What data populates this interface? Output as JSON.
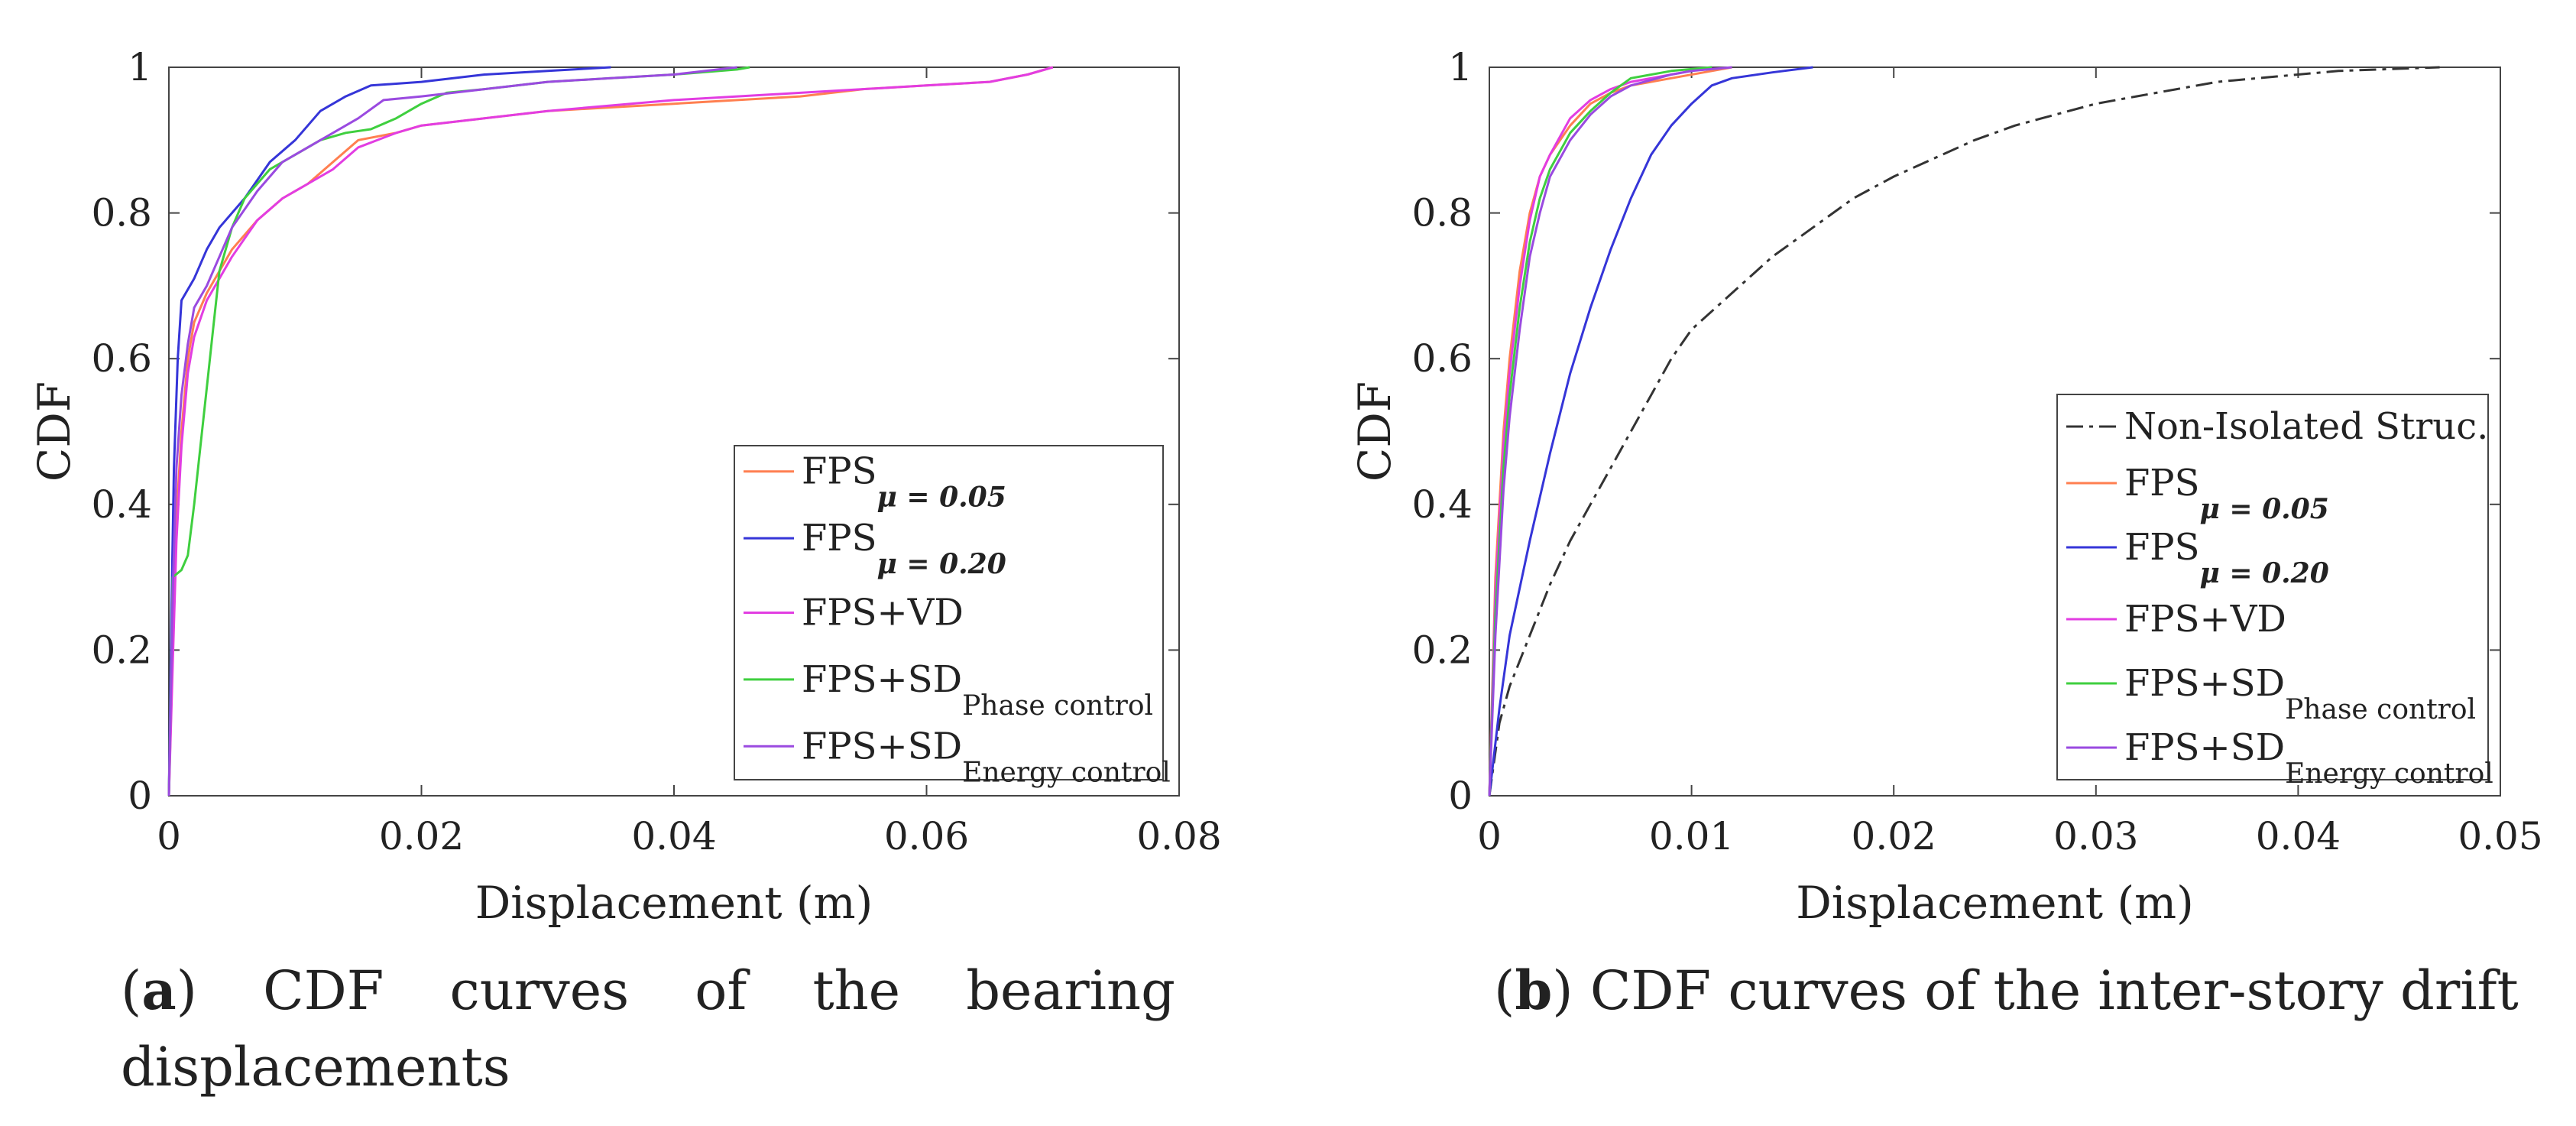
{
  "chart_data": [
    {
      "id": "a",
      "type": "line",
      "xlabel": "Displacement (m)",
      "ylabel": "CDF",
      "xlim": [
        0,
        0.08
      ],
      "ylim": [
        0,
        1
      ],
      "xticks": [
        0,
        0.02,
        0.04,
        0.06,
        0.08
      ],
      "xtick_labels": [
        "0",
        "0.02",
        "0.04",
        "0.06",
        "0.08"
      ],
      "yticks": [
        0,
        0.2,
        0.4,
        0.6,
        0.8,
        1
      ],
      "ytick_labels": [
        "0",
        "0.2",
        "0.4",
        "0.6",
        "0.8",
        "1"
      ],
      "legend_position": "bottom-right",
      "series": [
        {
          "name": "FPS",
          "sub": "μ = 0.05",
          "color": "#ff7f50",
          "dash": "",
          "points": [
            [
              0,
              0
            ],
            [
              0.0003,
              0.2
            ],
            [
              0.0006,
              0.38
            ],
            [
              0.001,
              0.5
            ],
            [
              0.0015,
              0.6
            ],
            [
              0.002,
              0.65
            ],
            [
              0.003,
              0.69
            ],
            [
              0.004,
              0.72
            ],
            [
              0.005,
              0.75
            ],
            [
              0.007,
              0.79
            ],
            [
              0.009,
              0.82
            ],
            [
              0.011,
              0.84
            ],
            [
              0.013,
              0.87
            ],
            [
              0.015,
              0.9
            ],
            [
              0.018,
              0.91
            ],
            [
              0.02,
              0.92
            ],
            [
              0.025,
              0.93
            ],
            [
              0.03,
              0.94
            ],
            [
              0.04,
              0.95
            ],
            [
              0.05,
              0.96
            ],
            [
              0.055,
              0.97
            ],
            [
              0.06,
              0.975
            ],
            [
              0.065,
              0.98
            ],
            [
              0.068,
              0.99
            ],
            [
              0.07,
              1
            ]
          ]
        },
        {
          "name": "FPS",
          "sub": "μ = 0.20",
          "color": "#3535d8",
          "dash": "",
          "points": [
            [
              0,
              0
            ],
            [
              0.0002,
              0.25
            ],
            [
              0.0004,
              0.45
            ],
            [
              0.0007,
              0.6
            ],
            [
              0.001,
              0.68
            ],
            [
              0.002,
              0.71
            ],
            [
              0.003,
              0.75
            ],
            [
              0.004,
              0.78
            ],
            [
              0.006,
              0.82
            ],
            [
              0.008,
              0.87
            ],
            [
              0.01,
              0.9
            ],
            [
              0.012,
              0.94
            ],
            [
              0.014,
              0.96
            ],
            [
              0.016,
              0.975
            ],
            [
              0.02,
              0.98
            ],
            [
              0.025,
              0.99
            ],
            [
              0.03,
              0.995
            ],
            [
              0.035,
              1
            ]
          ]
        },
        {
          "name": "FPS+VD",
          "sub": "",
          "color": "#e23de2",
          "dash": "",
          "points": [
            [
              0,
              0
            ],
            [
              0.0003,
              0.18
            ],
            [
              0.0006,
              0.35
            ],
            [
              0.001,
              0.48
            ],
            [
              0.0015,
              0.58
            ],
            [
              0.002,
              0.63
            ],
            [
              0.003,
              0.68
            ],
            [
              0.004,
              0.71
            ],
            [
              0.005,
              0.74
            ],
            [
              0.007,
              0.79
            ],
            [
              0.009,
              0.82
            ],
            [
              0.011,
              0.84
            ],
            [
              0.013,
              0.86
            ],
            [
              0.015,
              0.89
            ],
            [
              0.018,
              0.91
            ],
            [
              0.02,
              0.92
            ],
            [
              0.025,
              0.93
            ],
            [
              0.03,
              0.94
            ],
            [
              0.04,
              0.955
            ],
            [
              0.05,
              0.965
            ],
            [
              0.06,
              0.975
            ],
            [
              0.065,
              0.98
            ],
            [
              0.068,
              0.99
            ],
            [
              0.07,
              1
            ]
          ]
        },
        {
          "name": "FPS+SD",
          "sub": "Phase control",
          "color": "#3fcf3f",
          "dash": "",
          "points": [
            [
              0,
              0
            ],
            [
              0.0003,
              0.3
            ],
            [
              0.001,
              0.31
            ],
            [
              0.0015,
              0.33
            ],
            [
              0.002,
              0.4
            ],
            [
              0.0025,
              0.48
            ],
            [
              0.003,
              0.56
            ],
            [
              0.0035,
              0.64
            ],
            [
              0.004,
              0.72
            ],
            [
              0.005,
              0.78
            ],
            [
              0.006,
              0.82
            ],
            [
              0.008,
              0.86
            ],
            [
              0.01,
              0.88
            ],
            [
              0.012,
              0.9
            ],
            [
              0.014,
              0.91
            ],
            [
              0.016,
              0.915
            ],
            [
              0.018,
              0.93
            ],
            [
              0.02,
              0.95
            ],
            [
              0.022,
              0.965
            ],
            [
              0.025,
              0.97
            ],
            [
              0.03,
              0.98
            ],
            [
              0.035,
              0.985
            ],
            [
              0.04,
              0.99
            ],
            [
              0.045,
              0.997
            ],
            [
              0.046,
              1
            ]
          ]
        },
        {
          "name": "FPS+SD",
          "sub": "Energy control",
          "color": "#9a4ae0",
          "dash": "",
          "points": [
            [
              0,
              0
            ],
            [
              0.0003,
              0.28
            ],
            [
              0.0006,
              0.45
            ],
            [
              0.001,
              0.55
            ],
            [
              0.0015,
              0.62
            ],
            [
              0.002,
              0.67
            ],
            [
              0.003,
              0.7
            ],
            [
              0.004,
              0.74
            ],
            [
              0.005,
              0.78
            ],
            [
              0.007,
              0.83
            ],
            [
              0.009,
              0.87
            ],
            [
              0.011,
              0.89
            ],
            [
              0.013,
              0.91
            ],
            [
              0.015,
              0.93
            ],
            [
              0.017,
              0.955
            ],
            [
              0.02,
              0.96
            ],
            [
              0.025,
              0.97
            ],
            [
              0.03,
              0.98
            ],
            [
              0.035,
              0.985
            ],
            [
              0.04,
              0.99
            ],
            [
              0.045,
              1
            ]
          ]
        }
      ]
    },
    {
      "id": "b",
      "type": "line",
      "xlabel": "Displacement (m)",
      "ylabel": "CDF",
      "xlim": [
        0,
        0.05
      ],
      "ylim": [
        0,
        1
      ],
      "xticks": [
        0,
        0.01,
        0.02,
        0.03,
        0.04,
        0.05
      ],
      "xtick_labels": [
        "0",
        "0.01",
        "0.02",
        "0.03",
        "0.04",
        "0.05"
      ],
      "yticks": [
        0,
        0.2,
        0.4,
        0.6,
        0.8,
        1
      ],
      "ytick_labels": [
        "0",
        "0.2",
        "0.4",
        "0.6",
        "0.8",
        "1"
      ],
      "legend_position": "bottom-right",
      "series": [
        {
          "name": "Non-Isolated Struc.",
          "sub": "",
          "color": "#333333",
          "dash": "22,8,5,8",
          "points": [
            [
              0,
              0
            ],
            [
              0.0005,
              0.1
            ],
            [
              0.001,
              0.15
            ],
            [
              0.002,
              0.22
            ],
            [
              0.003,
              0.29
            ],
            [
              0.004,
              0.35
            ],
            [
              0.005,
              0.4
            ],
            [
              0.006,
              0.45
            ],
            [
              0.007,
              0.5
            ],
            [
              0.008,
              0.55
            ],
            [
              0.009,
              0.6
            ],
            [
              0.01,
              0.64
            ],
            [
              0.012,
              0.69
            ],
            [
              0.014,
              0.74
            ],
            [
              0.016,
              0.78
            ],
            [
              0.018,
              0.82
            ],
            [
              0.02,
              0.85
            ],
            [
              0.022,
              0.875
            ],
            [
              0.024,
              0.9
            ],
            [
              0.026,
              0.92
            ],
            [
              0.028,
              0.935
            ],
            [
              0.03,
              0.95
            ],
            [
              0.032,
              0.96
            ],
            [
              0.034,
              0.97
            ],
            [
              0.036,
              0.98
            ],
            [
              0.038,
              0.985
            ],
            [
              0.04,
              0.99
            ],
            [
              0.042,
              0.995
            ],
            [
              0.045,
              0.998
            ],
            [
              0.047,
              1
            ]
          ]
        },
        {
          "name": "FPS",
          "sub": "μ = 0.05",
          "color": "#ff7f50",
          "dash": "",
          "points": [
            [
              0,
              0
            ],
            [
              0.0003,
              0.3
            ],
            [
              0.0007,
              0.5
            ],
            [
              0.001,
              0.6
            ],
            [
              0.0015,
              0.72
            ],
            [
              0.002,
              0.8
            ],
            [
              0.0025,
              0.85
            ],
            [
              0.003,
              0.88
            ],
            [
              0.004,
              0.92
            ],
            [
              0.005,
              0.95
            ],
            [
              0.006,
              0.965
            ],
            [
              0.007,
              0.975
            ],
            [
              0.009,
              0.985
            ],
            [
              0.011,
              0.995
            ],
            [
              0.012,
              1
            ]
          ]
        },
        {
          "name": "FPS",
          "sub": "μ = 0.20",
          "color": "#3535d8",
          "dash": "",
          "points": [
            [
              0,
              0
            ],
            [
              0.0005,
              0.12
            ],
            [
              0.001,
              0.22
            ],
            [
              0.002,
              0.35
            ],
            [
              0.003,
              0.47
            ],
            [
              0.004,
              0.58
            ],
            [
              0.005,
              0.67
            ],
            [
              0.006,
              0.75
            ],
            [
              0.007,
              0.82
            ],
            [
              0.008,
              0.88
            ],
            [
              0.009,
              0.92
            ],
            [
              0.01,
              0.95
            ],
            [
              0.011,
              0.975
            ],
            [
              0.012,
              0.985
            ],
            [
              0.014,
              0.993
            ],
            [
              0.016,
              1
            ]
          ]
        },
        {
          "name": "FPS+VD",
          "sub": "",
          "color": "#e23de2",
          "dash": "",
          "points": [
            [
              0,
              0
            ],
            [
              0.0003,
              0.28
            ],
            [
              0.0007,
              0.48
            ],
            [
              0.001,
              0.58
            ],
            [
              0.0015,
              0.7
            ],
            [
              0.002,
              0.79
            ],
            [
              0.0025,
              0.85
            ],
            [
              0.003,
              0.88
            ],
            [
              0.004,
              0.93
            ],
            [
              0.005,
              0.955
            ],
            [
              0.006,
              0.97
            ],
            [
              0.007,
              0.98
            ],
            [
              0.009,
              0.99
            ],
            [
              0.011,
              1
            ]
          ]
        },
        {
          "name": "FPS+SD",
          "sub": "Phase control",
          "color": "#3fcf3f",
          "dash": "",
          "points": [
            [
              0,
              0
            ],
            [
              0.0003,
              0.25
            ],
            [
              0.0007,
              0.45
            ],
            [
              0.001,
              0.55
            ],
            [
              0.0015,
              0.67
            ],
            [
              0.002,
              0.76
            ],
            [
              0.0025,
              0.82
            ],
            [
              0.003,
              0.86
            ],
            [
              0.004,
              0.91
            ],
            [
              0.005,
              0.94
            ],
            [
              0.006,
              0.965
            ],
            [
              0.007,
              0.985
            ],
            [
              0.009,
              0.995
            ],
            [
              0.011,
              1
            ]
          ]
        },
        {
          "name": "FPS+SD",
          "sub": "Energy control",
          "color": "#9a4ae0",
          "dash": "",
          "points": [
            [
              0,
              0
            ],
            [
              0.0003,
              0.22
            ],
            [
              0.0007,
              0.42
            ],
            [
              0.001,
              0.52
            ],
            [
              0.0015,
              0.64
            ],
            [
              0.002,
              0.74
            ],
            [
              0.0025,
              0.8
            ],
            [
              0.003,
              0.85
            ],
            [
              0.004,
              0.9
            ],
            [
              0.005,
              0.935
            ],
            [
              0.006,
              0.96
            ],
            [
              0.007,
              0.975
            ],
            [
              0.009,
              0.99
            ],
            [
              0.01,
              0.995
            ],
            [
              0.012,
              1
            ]
          ]
        }
      ]
    }
  ],
  "captions": {
    "a": {
      "label": "a",
      "text_line1_words": [
        "CDF",
        "curves",
        "of",
        "the",
        "bearing"
      ],
      "text_line2": "displacements"
    },
    "b": {
      "label": "b",
      "text": " CDF curves of the inter-story drift"
    }
  }
}
